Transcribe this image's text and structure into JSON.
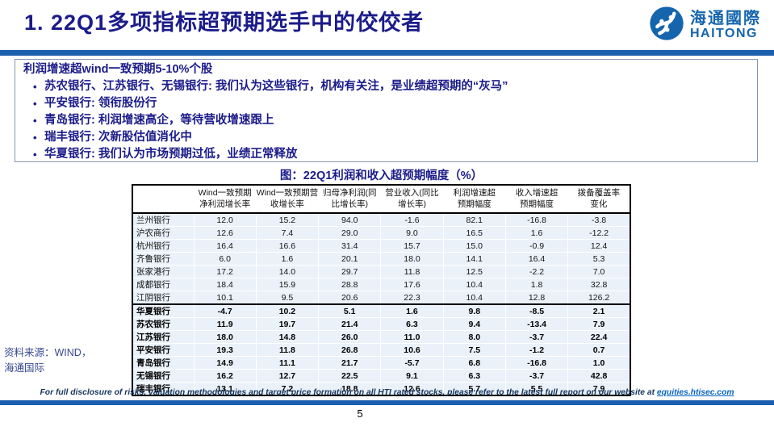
{
  "slide": {
    "title": "1. 22Q1多项指标超预期选手中的佼佼者",
    "page_number": "5"
  },
  "logo": {
    "cn": "海通國際",
    "en": "HAITONG"
  },
  "highlight_box": {
    "heading": "利润增速超wind一致预期5-10%个股",
    "bullet_marker": "•",
    "bullets": [
      "苏农银行、江苏银行、无锡银行: 我们认为这些银行，机构有关注，是业绩超预期的“灰马”",
      "平安银行: 领衔股份行",
      "青岛银行: 利润增速高企，等待营收增速跟上",
      "瑞丰银行: 次新股估值消化中",
      "华夏银行: 我们认为市场预期过低，业绩正常释放"
    ]
  },
  "table": {
    "caption": "图：22Q1利润和收入超预期幅度（%）",
    "columns": [
      "",
      "Wind一致预期\n净利润增长率",
      "Wind一致预期营\n收增长率",
      "归母净利润(同\n比增长率)",
      "营业收入(同比\n增长率)",
      "利润增速超\n预期幅度",
      "收入增速超\n预期幅度",
      "拨备覆盖率\n变化"
    ],
    "groups": [
      {
        "bold": false,
        "rows": [
          {
            "name": "兰州银行",
            "values": [
              "12.0",
              "15.2",
              "94.0",
              "-1.6",
              "82.1",
              "-16.8",
              "-3.8"
            ]
          },
          {
            "name": "沪农商行",
            "values": [
              "12.6",
              "7.4",
              "29.0",
              "9.0",
              "16.5",
              "1.6",
              "-12.2"
            ]
          },
          {
            "name": "杭州银行",
            "values": [
              "16.4",
              "16.6",
              "31.4",
              "15.7",
              "15.0",
              "-0.9",
              "12.4"
            ]
          },
          {
            "name": "齐鲁银行",
            "values": [
              "6.0",
              "1.6",
              "20.1",
              "18.0",
              "14.1",
              "16.4",
              "5.3"
            ]
          },
          {
            "name": "张家港行",
            "values": [
              "17.2",
              "14.0",
              "29.7",
              "11.8",
              "12.5",
              "-2.2",
              "7.0"
            ]
          },
          {
            "name": "成都银行",
            "values": [
              "18.4",
              "15.9",
              "28.8",
              "17.6",
              "10.4",
              "1.8",
              "32.8"
            ]
          },
          {
            "name": "江阴银行",
            "values": [
              "10.1",
              "9.5",
              "20.6",
              "22.3",
              "10.4",
              "12.8",
              "126.2"
            ]
          }
        ]
      },
      {
        "bold": true,
        "rows": [
          {
            "name": "华夏银行",
            "values": [
              "-4.7",
              "10.2",
              "5.1",
              "1.6",
              "9.8",
              "-8.5",
              "2.1"
            ]
          },
          {
            "name": "苏农银行",
            "values": [
              "11.9",
              "19.7",
              "21.4",
              "6.3",
              "9.4",
              "-13.4",
              "7.9"
            ]
          },
          {
            "name": "江苏银行",
            "values": [
              "18.0",
              "14.8",
              "26.0",
              "11.0",
              "8.0",
              "-3.7",
              "22.4"
            ]
          },
          {
            "name": "平安银行",
            "values": [
              "19.3",
              "11.8",
              "26.8",
              "10.6",
              "7.5",
              "-1.2",
              "0.7"
            ]
          },
          {
            "name": "青岛银行",
            "values": [
              "14.9",
              "11.1",
              "21.7",
              "-5.7",
              "6.8",
              "-16.8",
              "1.0"
            ]
          },
          {
            "name": "无锡银行",
            "values": [
              "16.2",
              "12.7",
              "22.5",
              "9.1",
              "6.3",
              "-3.7",
              "42.8"
            ]
          },
          {
            "name": "瑞丰银行",
            "values": [
              "13.1",
              "7.2",
              "18.8",
              "12.6",
              "5.7",
              "5.5",
              "7.9"
            ]
          }
        ]
      }
    ]
  },
  "source": {
    "text": "资料来源：WIND，\n海通国际"
  },
  "footer": {
    "disclaimer_prefix": "For full disclosure of risks, valuation methodologies and target price formation on all HTI rated stocks, please refer to the latest full report on our website at ",
    "disclaimer_link": "equities.htisec.com"
  },
  "colors": {
    "title_navy": "#1b1b8a",
    "bar_blue": "#1c5fae",
    "logo_blue": "#1565ae",
    "row_bg": "#eaf1f9",
    "link_blue": "#0563c1",
    "disclaimer_navy": "#17365d",
    "source_blue": "#374a8f"
  }
}
